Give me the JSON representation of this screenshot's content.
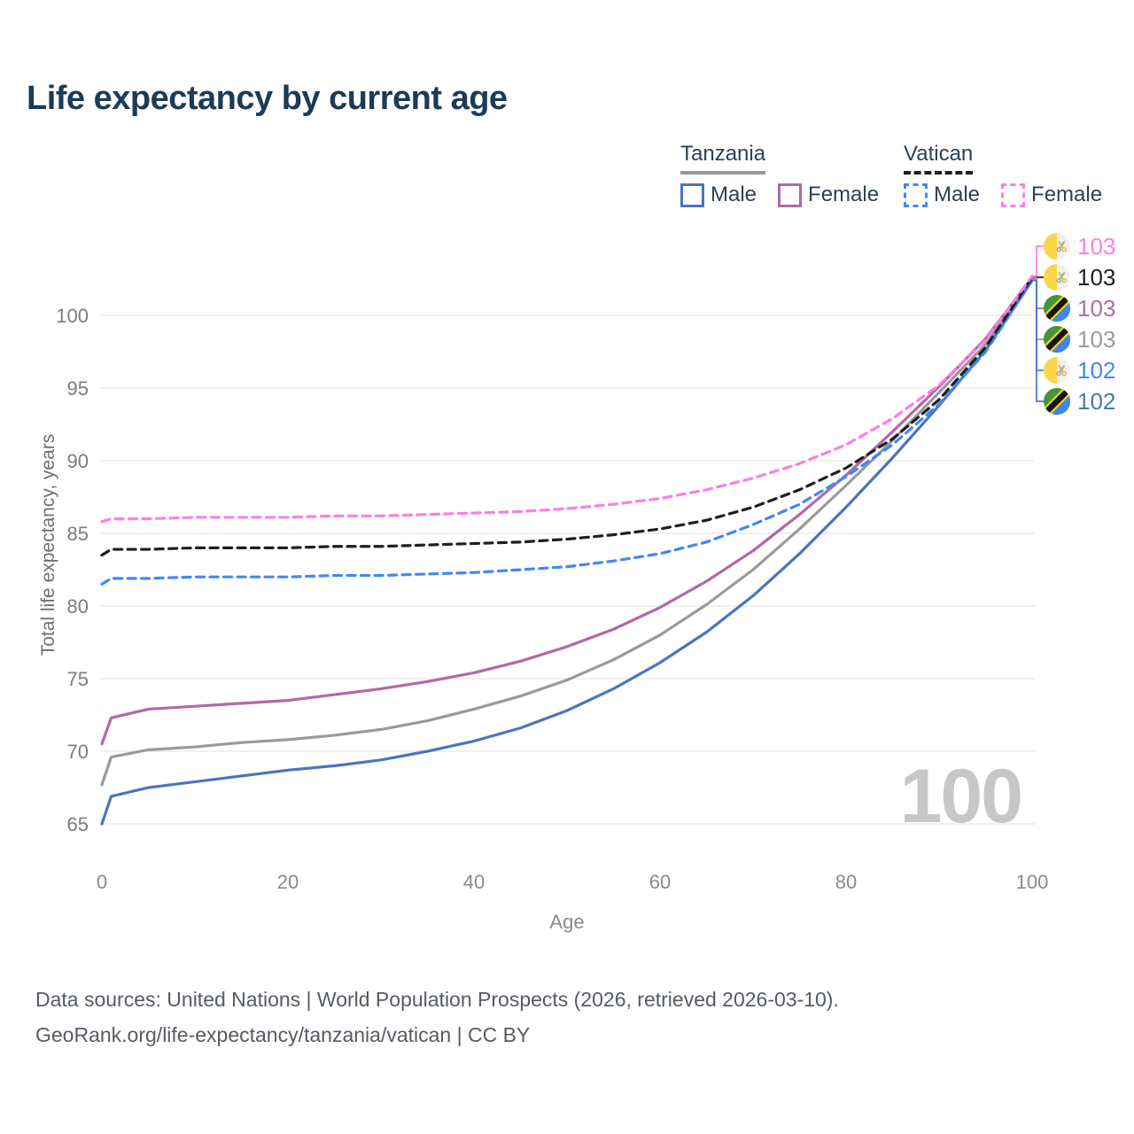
{
  "title": "Life expectancy by current age",
  "legend": {
    "groups": [
      {
        "label": "Tanzania",
        "line_style": "solid",
        "underline_color": "#9a9a9a",
        "items": [
          {
            "label": "Male",
            "color": "#4a74c2",
            "style": "solid"
          },
          {
            "label": "Female",
            "color": "#b369a3",
            "style": "solid"
          }
        ]
      },
      {
        "label": "Vatican",
        "line_style": "dashed",
        "underline_color": "#1f1f1f",
        "items": [
          {
            "label": "Male",
            "color": "#3f88f7",
            "style": "dashed"
          },
          {
            "label": "Female",
            "color": "#ff7ce8",
            "style": "dashed"
          }
        ]
      }
    ]
  },
  "watermark": "100",
  "footer": {
    "line1": "Data sources: United Nations | World Population Prospects (2026, retrieved 2026-03-10).",
    "line2": "GeoRank.org/life-expectancy/tanzania/vatican | CC BY"
  },
  "chart_data": {
    "type": "line",
    "title": "Life expectancy by current age",
    "xlabel": "Age",
    "ylabel": "Total life expectancy, years",
    "x_ticks": [
      0,
      20,
      40,
      60,
      80,
      100
    ],
    "y_ticks": [
      65,
      70,
      75,
      80,
      85,
      90,
      95,
      100
    ],
    "xlim": [
      0,
      100
    ],
    "ylim": [
      63,
      104
    ],
    "grid": "horizontal",
    "x": [
      0,
      1,
      5,
      10,
      15,
      20,
      25,
      30,
      35,
      40,
      45,
      50,
      55,
      60,
      65,
      70,
      75,
      80,
      85,
      90,
      95,
      100
    ],
    "series": [
      {
        "id": "tanzania_total",
        "name": "Tanzania",
        "country": "Tanzania",
        "flag": "tanzania",
        "color": "#9a9a9a",
        "dash": "solid",
        "values": [
          67.7,
          69.6,
          70.1,
          70.3,
          70.6,
          70.8,
          71.1,
          71.5,
          72.1,
          72.9,
          73.8,
          74.9,
          76.3,
          78.0,
          80.1,
          82.5,
          85.3,
          88.3,
          91.4,
          94.7,
          98.0,
          102.5
        ]
      },
      {
        "id": "tanzania_female",
        "name": "Tanzania Female",
        "country": "Tanzania",
        "flag": "tanzania",
        "color": "#b369a3",
        "dash": "solid",
        "values": [
          70.5,
          72.3,
          72.9,
          73.1,
          73.3,
          73.5,
          73.9,
          74.3,
          74.8,
          75.4,
          76.2,
          77.2,
          78.4,
          79.9,
          81.7,
          83.8,
          86.3,
          89.0,
          92.0,
          95.1,
          98.4,
          102.6
        ]
      },
      {
        "id": "tanzania_male",
        "name": "Tanzania Male",
        "country": "Tanzania",
        "flag": "tanzania",
        "color": "#4a74c2",
        "dash": "solid",
        "values": [
          65.0,
          66.9,
          67.5,
          67.9,
          68.3,
          68.7,
          69.0,
          69.4,
          70.0,
          70.7,
          71.6,
          72.8,
          74.3,
          76.1,
          78.2,
          80.7,
          83.6,
          86.8,
          90.2,
          93.8,
          97.6,
          102.4
        ]
      },
      {
        "id": "vatican_male",
        "name": "Vatican Male",
        "country": "Vatican",
        "flag": "vatican",
        "color": "#3f88f7",
        "dash": "dashed",
        "values": [
          81.5,
          81.9,
          81.9,
          82.0,
          82.0,
          82.0,
          82.1,
          82.1,
          82.2,
          82.3,
          82.5,
          82.7,
          83.1,
          83.6,
          84.4,
          85.6,
          87.0,
          88.9,
          91.1,
          93.9,
          97.5,
          102.4
        ]
      },
      {
        "id": "vatican_total",
        "name": "Vatican",
        "country": "Vatican",
        "flag": "vatican",
        "color": "#1f1f1f",
        "dash": "dashed",
        "values": [
          83.5,
          83.9,
          83.9,
          84.0,
          84.0,
          84.0,
          84.1,
          84.1,
          84.2,
          84.3,
          84.4,
          84.6,
          84.9,
          85.3,
          85.9,
          86.8,
          88.0,
          89.5,
          91.5,
          94.2,
          97.8,
          102.6
        ]
      },
      {
        "id": "vatican_female",
        "name": "Vatican Female",
        "country": "Vatican",
        "flag": "vatican",
        "color": "#ff7ce8",
        "dash": "dashed",
        "values": [
          85.8,
          86.0,
          86.0,
          86.1,
          86.1,
          86.1,
          86.2,
          86.2,
          86.3,
          86.4,
          86.5,
          86.7,
          87.0,
          87.4,
          88.0,
          88.8,
          89.8,
          91.1,
          92.9,
          95.2,
          98.3,
          102.7
        ]
      }
    ],
    "end_labels": [
      {
        "value": "103",
        "color": "#ff7ce8",
        "flag": "vatican",
        "series_index": 5
      },
      {
        "value": "103",
        "color": "#1f1f1f",
        "flag": "vatican",
        "series_index": 4
      },
      {
        "value": "103",
        "color": "#b369a3",
        "flag": "tanzania",
        "series_index": 1
      },
      {
        "value": "103",
        "color": "#9a9a9a",
        "flag": "tanzania",
        "series_index": 0
      },
      {
        "value": "102",
        "color": "#3f88f7",
        "flag": "vatican",
        "series_index": 3
      },
      {
        "value": "102",
        "color": "#4a74c2",
        "flag": "tanzania",
        "series_index": 2
      }
    ]
  }
}
